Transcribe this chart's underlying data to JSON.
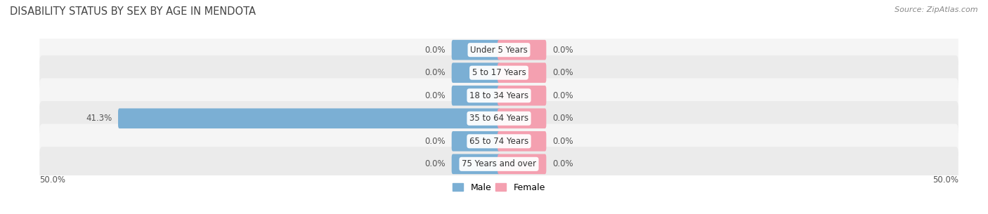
{
  "title": "Disability Status by Sex by Age in Mendota",
  "source": "Source: ZipAtlas.com",
  "categories": [
    "Under 5 Years",
    "5 to 17 Years",
    "18 to 34 Years",
    "35 to 64 Years",
    "65 to 74 Years",
    "75 Years and over"
  ],
  "male_values": [
    0.0,
    0.0,
    0.0,
    41.3,
    0.0,
    0.0
  ],
  "female_values": [
    0.0,
    0.0,
    0.0,
    0.0,
    0.0,
    0.0
  ],
  "male_color": "#7bafd4",
  "female_color": "#f4a0b0",
  "row_colors": [
    "#f5f5f5",
    "#ebebeb"
  ],
  "xlim": 50.0,
  "stub_size": 5.0,
  "label_color": "#555555",
  "title_color": "#444444",
  "title_fontsize": 10.5,
  "source_fontsize": 8,
  "value_fontsize": 8.5,
  "cat_fontsize": 8.5,
  "legend_fontsize": 9
}
